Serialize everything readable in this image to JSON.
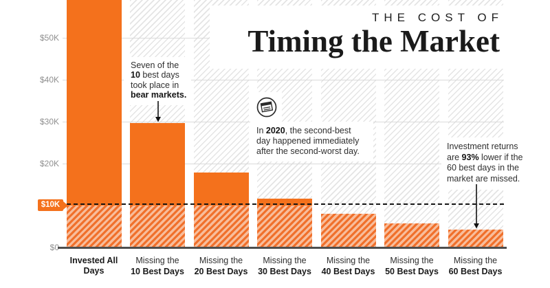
{
  "title": {
    "kicker": "THE COST OF",
    "main": "Timing the Market"
  },
  "chart_data": {
    "type": "bar",
    "title": "The Cost of Timing the Market",
    "categories": [
      "Invested All Days",
      "Missing the 10 Best Days",
      "Missing the 20 Best Days",
      "Missing the 30 Best Days",
      "Missing the 40 Best Days",
      "Missing the 50 Best Days",
      "Missing the 60 Best Days"
    ],
    "category_label_lines": [
      [
        "Invested All Days"
      ],
      [
        "Missing the",
        "10 Best Days"
      ],
      [
        "Missing the",
        "20 Best Days"
      ],
      [
        "Missing the",
        "30 Best Days"
      ],
      [
        "Missing the",
        "40 Best Days"
      ],
      [
        "Missing the",
        "50 Best Days"
      ],
      [
        "Missing the",
        "60 Best Days"
      ]
    ],
    "values": [
      65000,
      29700,
      17800,
      11700,
      8000,
      5700,
      4200
    ],
    "first_bar_clipped_at_top": true,
    "xlabel": "",
    "ylabel": "",
    "ylim": [
      0,
      59000
    ],
    "grid": true,
    "legend": false,
    "style_note_visible": "bars solid orange above $10K threshold, orange-hatched below; gray-hatched full-height background columns"
  },
  "y_axis": {
    "ticks": [
      {
        "label": "$50K",
        "value": 50000
      },
      {
        "label": "$40K",
        "value": 40000
      },
      {
        "label": "$30K",
        "value": 30000
      },
      {
        "label": "$20K",
        "value": 20000
      },
      {
        "label": "$0",
        "value": 0
      }
    ],
    "gridline_values": [
      50000,
      40000,
      30000,
      20000
    ]
  },
  "threshold": {
    "label": "$10K",
    "value": 10000
  },
  "annotations": [
    {
      "name": "bear-markets-note",
      "lines": [
        [
          {
            "t": "Seven of the"
          }
        ],
        [
          {
            "t": "10",
            "b": true
          },
          {
            "t": " best days"
          }
        ],
        [
          {
            "t": "took place in"
          }
        ],
        [
          {
            "t": "bear markets.",
            "b": true
          }
        ]
      ]
    },
    {
      "name": "2020-note",
      "icon": "newspaper-icon",
      "lines": [
        [
          {
            "t": "In "
          },
          {
            "t": "2020",
            "b": true
          },
          {
            "t": ", the second-best"
          }
        ],
        [
          {
            "t": "day happened immediately"
          }
        ],
        [
          {
            "t": "after the second-worst day."
          }
        ]
      ]
    },
    {
      "name": "returns-note",
      "lines": [
        [
          {
            "t": "Investment returns"
          }
        ],
        [
          {
            "t": "are "
          },
          {
            "t": "93%",
            "b": true
          },
          {
            "t": " lower if the"
          }
        ],
        [
          {
            "t": "60 best days in the"
          }
        ],
        [
          {
            "t": "market are missed."
          }
        ]
      ]
    }
  ],
  "colors": {
    "orange": "#F4711C",
    "orange_stripe": "#F0702B",
    "orange_hatch_light": "#F8BD9B",
    "gray_hatch": "#E4E4E4",
    "axis_label": "#8F8F8F",
    "baseline": "#4D4D4D",
    "dashed_line": "#151515",
    "annotation_text": "#2F2F2F",
    "badge_text": "#FFFFFF",
    "background": "#FFFFFF"
  }
}
